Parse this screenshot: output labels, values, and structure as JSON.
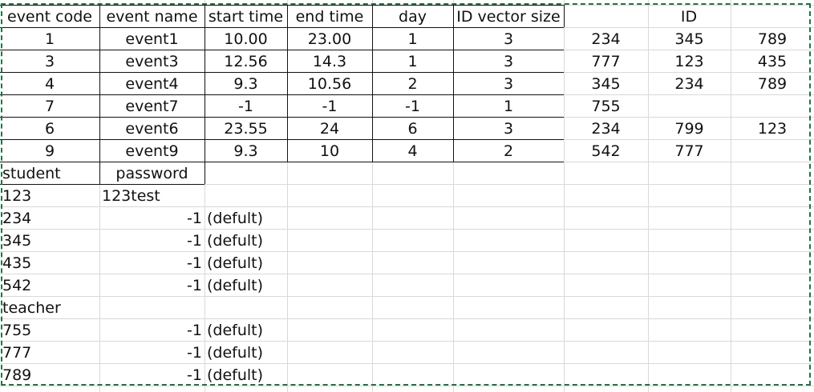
{
  "header": [
    "event code",
    "event name",
    "start time",
    "end time",
    "day",
    "ID vector size",
    "ID"
  ],
  "events": [
    [
      "1",
      "event1",
      "10.00",
      "23.00",
      "1",
      "3",
      "234",
      "345",
      "789"
    ],
    [
      "3",
      "event3",
      "12.56",
      "14.3",
      "1",
      "3",
      "777",
      "123",
      "435"
    ],
    [
      "4",
      "event4",
      "9.3",
      "10.56",
      "2",
      "3",
      "345",
      "234",
      "789"
    ],
    [
      "7",
      "event7",
      "-1",
      "-1",
      "-1",
      "1",
      "755",
      "",
      ""
    ],
    [
      "6",
      "event6",
      "23.55",
      "24",
      "6",
      "3",
      "234",
      "799",
      "123"
    ],
    [
      "9",
      "event9",
      "9.3",
      "10",
      "4",
      "2",
      "542",
      "777",
      ""
    ]
  ],
  "student_section": {
    "title": "student",
    "password_header": "password",
    "rows": [
      {
        "id": "123",
        "password": "123test",
        "note": ""
      },
      {
        "id": "234",
        "password": "-1",
        "note": "(defult)"
      },
      {
        "id": "345",
        "password": "-1",
        "note": "(defult)"
      },
      {
        "id": "435",
        "password": "-1",
        "note": "(defult)"
      },
      {
        "id": "542",
        "password": "-1",
        "note": "(defult)"
      }
    ]
  },
  "teacher_section": {
    "title": "teacher",
    "rows": [
      {
        "id": "755",
        "password": "-1",
        "note": "(defult)"
      },
      {
        "id": "777",
        "password": "-1",
        "note": "(defult)"
      },
      {
        "id": "789",
        "password": "-1",
        "note": "(defult)"
      }
    ]
  },
  "colors": {
    "gridline": "#d9d9d9",
    "border": "#111111",
    "selection": "#217346"
  }
}
